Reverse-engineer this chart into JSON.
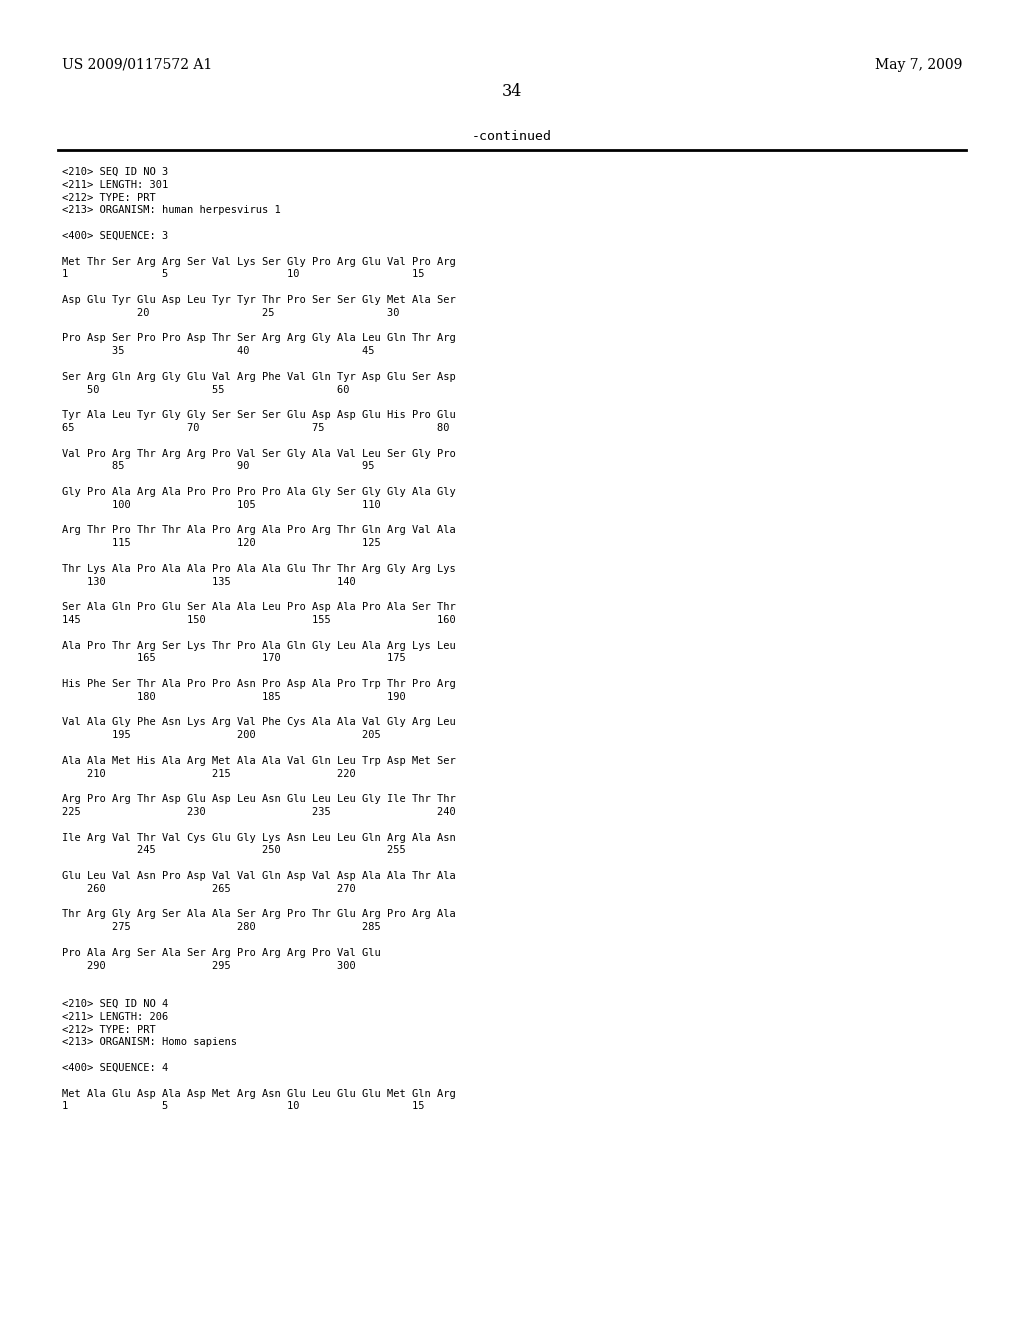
{
  "header_left": "US 2009/0117572 A1",
  "header_right": "May 7, 2009",
  "page_number": "34",
  "continued_text": "-continued",
  "background_color": "#ffffff",
  "text_color": "#000000",
  "font_size": 7.5,
  "header_font_size": 10.0,
  "page_num_font_size": 11.5,
  "continued_font_size": 9.5,
  "content_lines": [
    "<210> SEQ ID NO 3",
    "<211> LENGTH: 301",
    "<212> TYPE: PRT",
    "<213> ORGANISM: human herpesvirus 1",
    "",
    "<400> SEQUENCE: 3",
    "",
    "Met Thr Ser Arg Arg Ser Val Lys Ser Gly Pro Arg Glu Val Pro Arg",
    "1               5                   10                  15",
    "",
    "Asp Glu Tyr Glu Asp Leu Tyr Tyr Thr Pro Ser Ser Gly Met Ala Ser",
    "            20                  25                  30",
    "",
    "Pro Asp Ser Pro Pro Asp Thr Ser Arg Arg Gly Ala Leu Gln Thr Arg",
    "        35                  40                  45",
    "",
    "Ser Arg Gln Arg Gly Glu Val Arg Phe Val Gln Tyr Asp Glu Ser Asp",
    "    50                  55                  60",
    "",
    "Tyr Ala Leu Tyr Gly Gly Ser Ser Ser Glu Asp Asp Glu His Pro Glu",
    "65                  70                  75                  80",
    "",
    "Val Pro Arg Thr Arg Arg Pro Val Ser Gly Ala Val Leu Ser Gly Pro",
    "        85                  90                  95",
    "",
    "Gly Pro Ala Arg Ala Pro Pro Pro Pro Ala Gly Ser Gly Gly Ala Gly",
    "        100                 105                 110",
    "",
    "Arg Thr Pro Thr Thr Ala Pro Arg Ala Pro Arg Thr Gln Arg Val Ala",
    "        115                 120                 125",
    "",
    "Thr Lys Ala Pro Ala Ala Pro Ala Ala Glu Thr Thr Arg Gly Arg Lys",
    "    130                 135                 140",
    "",
    "Ser Ala Gln Pro Glu Ser Ala Ala Leu Pro Asp Ala Pro Ala Ser Thr",
    "145                 150                 155                 160",
    "",
    "Ala Pro Thr Arg Ser Lys Thr Pro Ala Gln Gly Leu Ala Arg Lys Leu",
    "            165                 170                 175",
    "",
    "His Phe Ser Thr Ala Pro Pro Asn Pro Asp Ala Pro Trp Thr Pro Arg",
    "            180                 185                 190",
    "",
    "Val Ala Gly Phe Asn Lys Arg Val Phe Cys Ala Ala Val Gly Arg Leu",
    "        195                 200                 205",
    "",
    "Ala Ala Met His Ala Arg Met Ala Ala Val Gln Leu Trp Asp Met Ser",
    "    210                 215                 220",
    "",
    "Arg Pro Arg Thr Asp Glu Asp Leu Asn Glu Leu Leu Gly Ile Thr Thr",
    "225                 230                 235                 240",
    "",
    "Ile Arg Val Thr Val Cys Glu Gly Lys Asn Leu Leu Gln Arg Ala Asn",
    "            245                 250                 255",
    "",
    "Glu Leu Val Asn Pro Asp Val Val Gln Asp Val Asp Ala Ala Thr Ala",
    "    260                 265                 270",
    "",
    "Thr Arg Gly Arg Ser Ala Ala Ser Arg Pro Thr Glu Arg Pro Arg Ala",
    "        275                 280                 285",
    "",
    "Pro Ala Arg Ser Ala Ser Arg Pro Arg Arg Pro Val Glu",
    "    290                 295                 300",
    "",
    "",
    "<210> SEQ ID NO 4",
    "<211> LENGTH: 206",
    "<212> TYPE: PRT",
    "<213> ORGANISM: Homo sapiens",
    "",
    "<400> SEQUENCE: 4",
    "",
    "Met Ala Glu Asp Ala Asp Met Arg Asn Glu Leu Glu Glu Met Gln Arg",
    "1               5                   10                  15"
  ]
}
